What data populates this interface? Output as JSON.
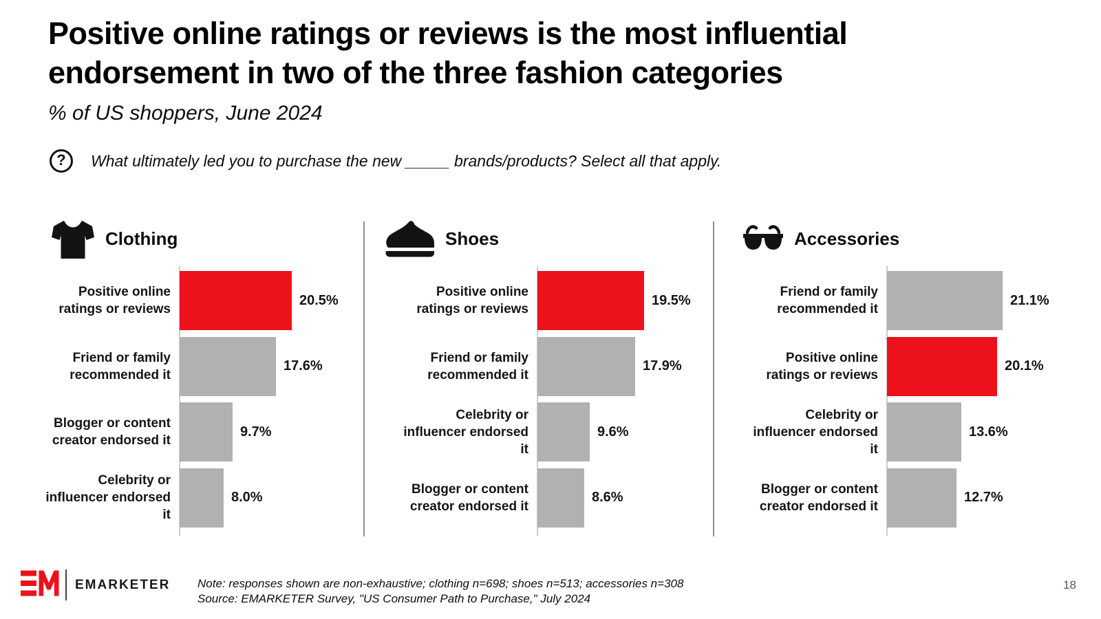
{
  "title": {
    "lines": [
      "Positive online ratings or reviews is the most influential",
      "endorsement in two of the three fashion categories"
    ]
  },
  "subtitle": "% of US shoppers, June 2024",
  "question": {
    "icon_glyph": "?",
    "text": "What ultimately led you to purchase the new _____ brands/products? Select all that apply."
  },
  "chart_data": {
    "type": "bar",
    "orientation": "horizontal",
    "unit": "percent",
    "value_range": [
      0,
      21.1
    ],
    "grid": false,
    "legend": false,
    "highlight_meaning": "highest-rated endorsement category (Positive online ratings or reviews)",
    "panels": [
      {
        "title": "Clothing",
        "icon": "tshirt-icon",
        "bars": [
          {
            "label": "Positive online ratings or reviews",
            "value": 20.5,
            "display": "20.5%",
            "highlight": true
          },
          {
            "label": "Friend or family recommended it",
            "value": 17.6,
            "display": "17.6%",
            "highlight": false
          },
          {
            "label": "Blogger or content creator endorsed it",
            "value": 9.7,
            "display": "9.7%",
            "highlight": false
          },
          {
            "label": "Celebrity or influencer endorsed it",
            "value": 8.0,
            "display": "8.0%",
            "highlight": false
          }
        ]
      },
      {
        "title": "Shoes",
        "icon": "sneaker-icon",
        "bars": [
          {
            "label": "Positive online ratings or reviews",
            "value": 19.5,
            "display": "19.5%",
            "highlight": true
          },
          {
            "label": "Friend or family recommended it",
            "value": 17.9,
            "display": "17.9%",
            "highlight": false
          },
          {
            "label": "Celebrity or influencer endorsed it",
            "value": 9.6,
            "display": "9.6%",
            "highlight": false
          },
          {
            "label": "Blogger or content creator endorsed it",
            "value": 8.6,
            "display": "8.6%",
            "highlight": false
          }
        ]
      },
      {
        "title": "Accessories",
        "icon": "sunglasses-icon",
        "bars": [
          {
            "label": "Friend or family recommended it",
            "value": 21.1,
            "display": "21.1%",
            "highlight": false
          },
          {
            "label": "Positive online ratings or reviews",
            "value": 20.1,
            "display": "20.1%",
            "highlight": true
          },
          {
            "label": "Celebrity or influencer endorsed it",
            "value": 13.6,
            "display": "13.6%",
            "highlight": false
          },
          {
            "label": "Blogger or content creator endorsed it",
            "value": 12.7,
            "display": "12.7%",
            "highlight": false
          }
        ]
      }
    ]
  },
  "footer": {
    "logo_monogram": "EM",
    "logo_text": "EMARKETER",
    "note": "Note: responses shown are non-exhaustive; clothing n=698; shoes n=513; accessories n=308",
    "source": "Source: EMARKETER Survey, \"US Consumer Path to Purchase,\" July 2024",
    "page_number": "18"
  },
  "colors": {
    "highlight_bar": "#ec111a",
    "bar": "#b1b1b1",
    "axis": "#cccccc",
    "divider": "#8f8f8f",
    "logo_red": "#ec111a",
    "text": "#111111"
  }
}
